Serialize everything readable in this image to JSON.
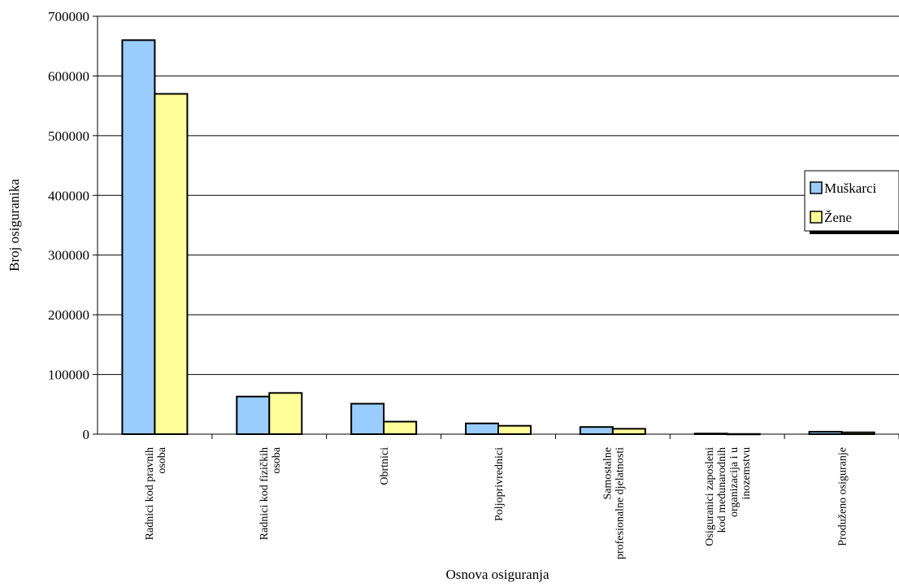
{
  "chart_data": {
    "type": "bar",
    "title": "",
    "xlabel": "Osnova osiguranja",
    "ylabel": "Broj osiguranika",
    "ylim": [
      0,
      700000
    ],
    "yticks": [
      0,
      100000,
      200000,
      300000,
      400000,
      500000,
      600000,
      700000
    ],
    "ytick_labels": [
      "0",
      "100000",
      "200000",
      "300000",
      "400000",
      "500000",
      "600000",
      "700000"
    ],
    "grid": true,
    "legend_position": "right",
    "categories": [
      [
        "Radnici kod pravnih",
        "osoba"
      ],
      [
        "Radnici kod fizičkih",
        "osoba"
      ],
      [
        "Obrtnici"
      ],
      [
        "Poljoprivrednici"
      ],
      [
        "Samostalne",
        "profesionalne djelatnosti"
      ],
      [
        "Osiguranici zaposleni",
        "kod međunarodnih",
        "organizacija i u",
        "inozemstvu"
      ],
      [
        "Produženo osiguranje"
      ]
    ],
    "series": [
      {
        "name": "Muškarci",
        "color": "#99ccff",
        "values": [
          660000,
          63000,
          51000,
          18000,
          12000,
          1000,
          4000
        ]
      },
      {
        "name": "Žene",
        "color": "#ffff99",
        "values": [
          570000,
          69000,
          21000,
          14000,
          9000,
          300,
          3000
        ]
      }
    ]
  }
}
